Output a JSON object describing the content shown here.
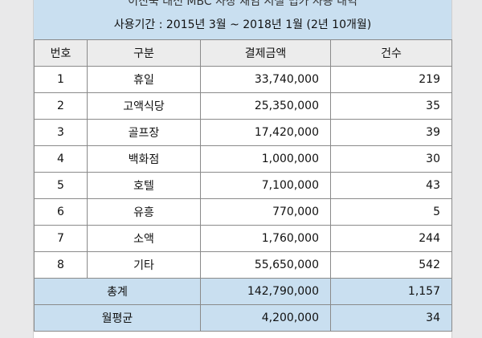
{
  "title": "이진숙 대전 MBC 사장 재임 시절 법카 사용 내역",
  "period": "사용기간 : 2015년 3월 ~ 2018년 1월 (2년 10개월)",
  "headers": [
    "번호",
    "구분",
    "결제금액",
    "건수"
  ],
  "rows": [
    {
      "no": "1",
      "category": "휴일",
      "amount": "33,740,000",
      "count": "219"
    },
    {
      "no": "2",
      "category": "고액식당",
      "amount": "25,350,000",
      "count": "35"
    },
    {
      "no": "3",
      "category": "골프장",
      "amount": "17,420,000",
      "count": "39"
    },
    {
      "no": "4",
      "category": "백화점",
      "amount": "1,000,000",
      "count": "30"
    },
    {
      "no": "5",
      "category": "호텔",
      "amount": "7,100,000",
      "count": "43"
    },
    {
      "no": "6",
      "category": "유흥",
      "amount": "770,000",
      "count": "5"
    },
    {
      "no": "7",
      "category": "소액",
      "amount": "1,760,000",
      "count": "244"
    },
    {
      "no": "8",
      "category": "기타",
      "amount": "55,650,000",
      "count": "542"
    }
  ],
  "total": {
    "label": "총계",
    "amount": "142,790,000",
    "count": "1,157"
  },
  "monthly": {
    "label": "월평균",
    "amount": "4,200,000",
    "count": "34"
  }
}
